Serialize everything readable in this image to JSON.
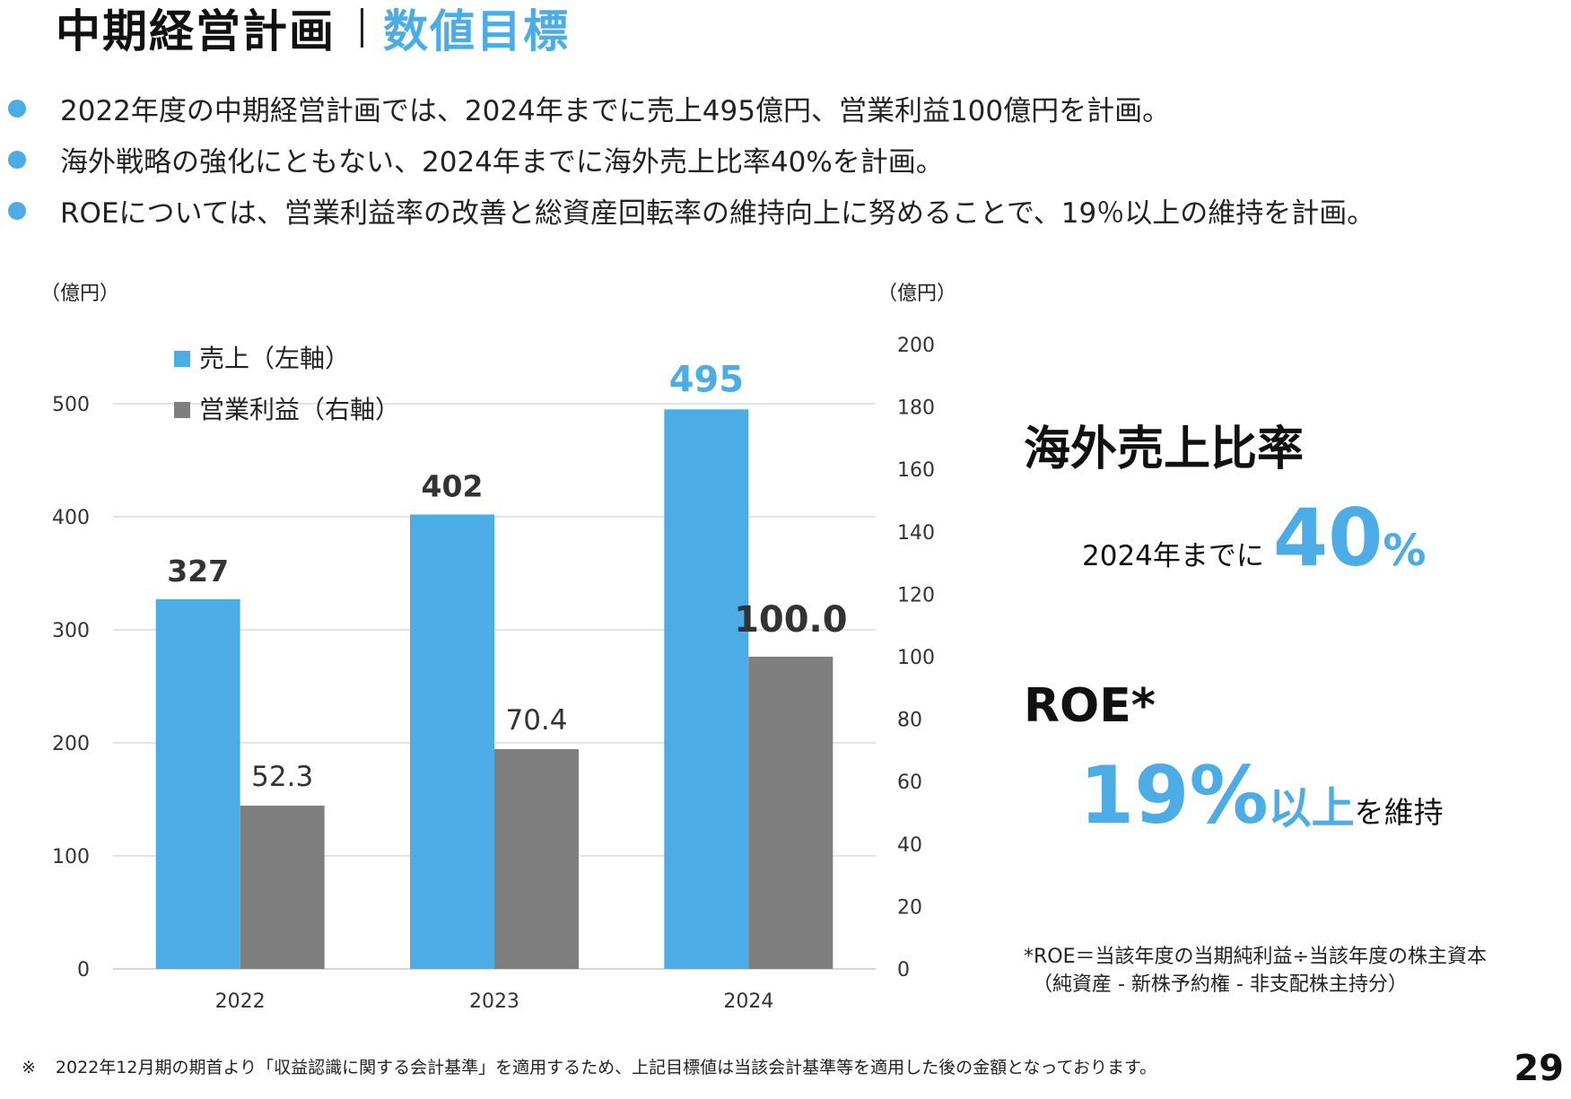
{
  "header": {
    "title": "中期経営計画",
    "subtitle": "数値目標"
  },
  "bullets": [
    "2022年度の中期経営計画では、2024年までに売上495億円、営業利益100億円を計画。",
    "海外戦略の強化にともない、2024年までに海外売上比率40%を計画。",
    "ROEについては、営業利益率の改善と総資産回転率の維持向上に努めることで、19％以上の維持を計画。"
  ],
  "chart_data": {
    "type": "bar",
    "categories": [
      "2022",
      "2023",
      "2024"
    ],
    "series": [
      {
        "name": "売上（左軸）",
        "axis": "left",
        "color": "#4cade6",
        "values": [
          327,
          402,
          495
        ],
        "labels": [
          "327",
          "402",
          "495"
        ]
      },
      {
        "name": "営業利益（右軸）",
        "axis": "right",
        "color": "#7f7f7f",
        "values": [
          52.3,
          70.4,
          100.0
        ],
        "labels": [
          "52.3",
          "70.4",
          "100.0"
        ]
      }
    ],
    "left_axis": {
      "unit": "（億円）",
      "ylim": [
        0,
        500
      ],
      "ticks": [
        0,
        100,
        200,
        300,
        400,
        500
      ]
    },
    "right_axis": {
      "unit": "（億円）",
      "ylim": [
        0,
        200
      ],
      "ticks": [
        0,
        20,
        40,
        60,
        80,
        100,
        120,
        140,
        160,
        180,
        200
      ]
    },
    "grid": true,
    "legend": "top-left"
  },
  "kpi": {
    "overseas": {
      "title": "海外売上比率",
      "prefix": "2024年までに",
      "value": "40",
      "unit": "%"
    },
    "roe": {
      "title": "ROE*",
      "value": "19%",
      "condition": "以上",
      "suffix": "を維持"
    }
  },
  "roe_definition": "*ROE＝当該年度の当期純利益÷当該年度の株主資本",
  "roe_definition_sub": "（純資産 - 新株予約権 - 非支配株主持分）",
  "footnote_mark": "※",
  "footnote": "2022年12月期の期首より「収益認識に関する会計基準」を適用するため、上記目標値は当該会計基準等を適用した後の金額となっております。",
  "page_number": "29"
}
